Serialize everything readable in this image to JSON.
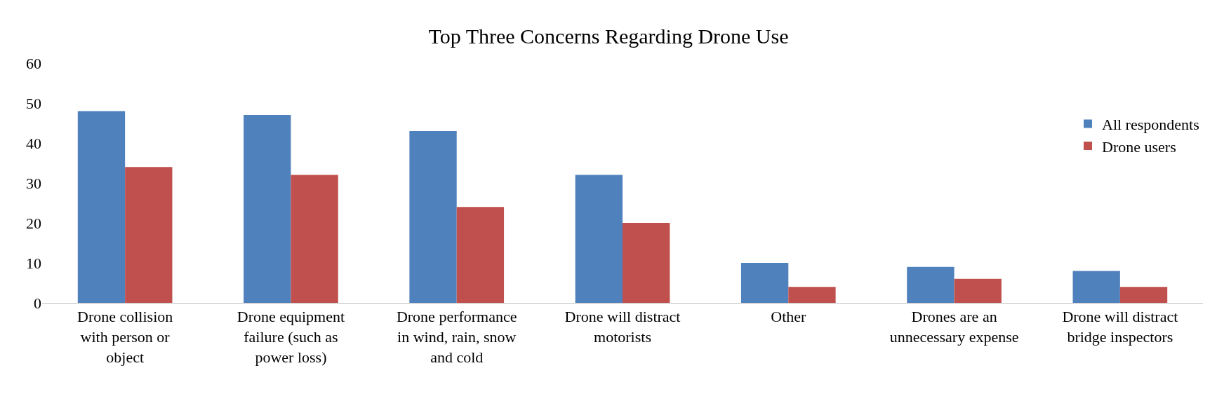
{
  "chart_data": {
    "type": "bar",
    "title": "Top Three Concerns Regarding Drone Use",
    "categories": [
      "Drone collision with person or object",
      "Drone equipment failure (such as power loss)",
      "Drone performance in wind, rain, snow and cold",
      "Drone will distract motorists",
      "Other",
      "Drones are an unnecessary expense",
      "Drone will distract bridge inspectors"
    ],
    "series": [
      {
        "name": "All respondents",
        "color": "#4f81bd",
        "values": [
          48,
          47,
          43,
          32,
          10,
          9,
          8
        ]
      },
      {
        "name": "Drone users",
        "color": "#c0504d",
        "values": [
          34,
          32,
          24,
          20,
          4,
          6,
          4
        ]
      }
    ],
    "ylim": [
      0,
      60
    ],
    "yticks": [
      0,
      10,
      20,
      30,
      40,
      50,
      60
    ],
    "grid": false,
    "legend": "right"
  }
}
